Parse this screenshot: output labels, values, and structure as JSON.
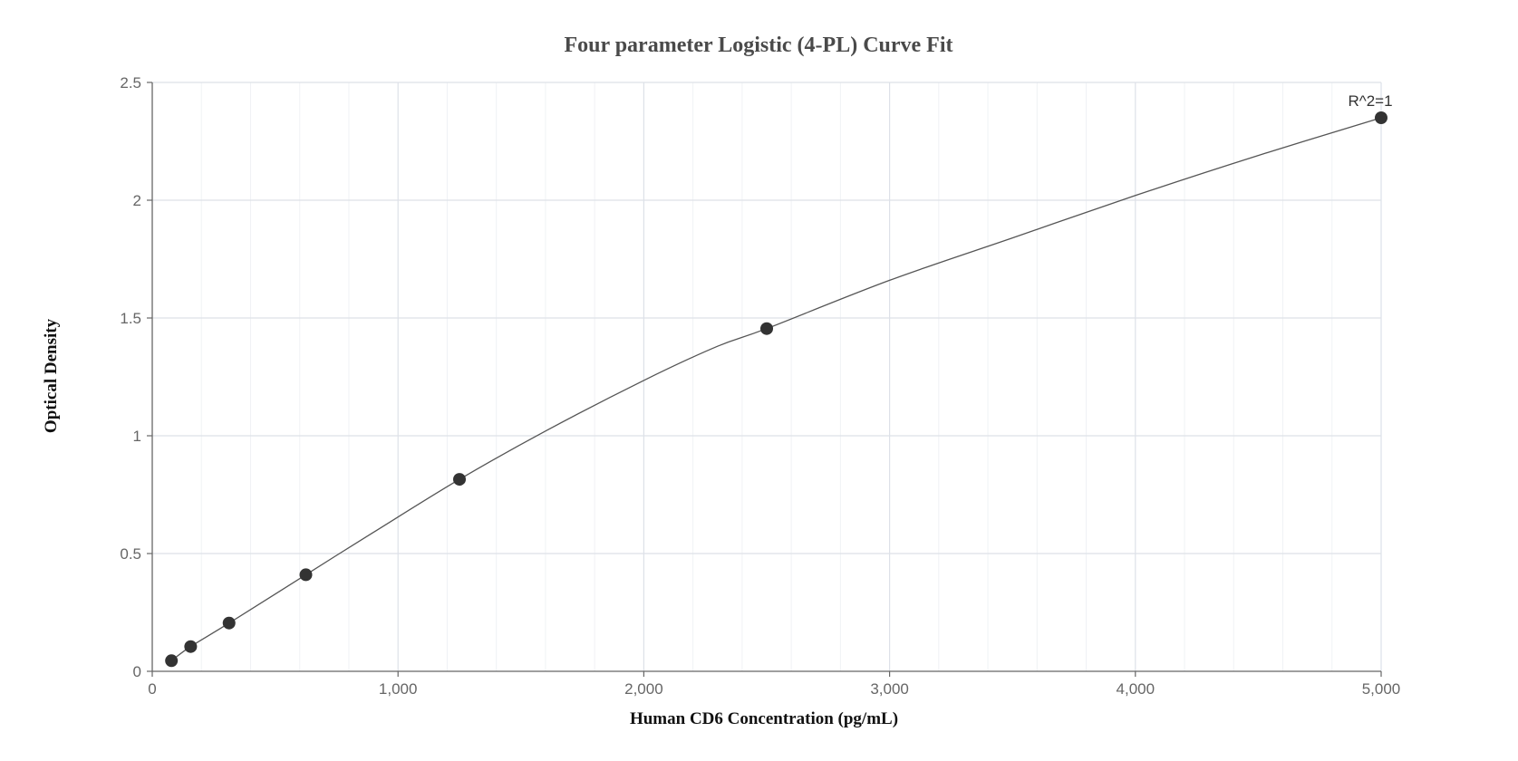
{
  "chart_data": {
    "type": "scatter",
    "title": "Four parameter Logistic (4-PL) Curve Fit",
    "xlabel": "Human CD6 Concentration (pg/mL)",
    "ylabel": "Optical Density",
    "xlim": [
      0,
      5000
    ],
    "ylim": [
      0,
      2.5
    ],
    "x_ticks": [
      0,
      1000,
      2000,
      3000,
      4000,
      5000
    ],
    "x_tick_labels": [
      "0",
      "1,000",
      "2,000",
      "3,000",
      "4,000",
      "5,000"
    ],
    "y_ticks": [
      0,
      0.5,
      1,
      1.5,
      2,
      2.5
    ],
    "y_tick_labels": [
      "0",
      "0.5",
      "1",
      "1.5",
      "2",
      "2.5"
    ],
    "grid": true,
    "series": [
      {
        "x": [
          78.125,
          156.25,
          312.5,
          625,
          1250,
          2500,
          5000
        ],
        "y": [
          0.045,
          0.105,
          0.205,
          0.41,
          0.815,
          1.455,
          2.35
        ]
      }
    ],
    "fit_curve": {
      "model": "4-PL",
      "x": [
        78,
        156,
        313,
        625,
        900,
        1250,
        1600,
        2000,
        2300,
        2500,
        3000,
        3500,
        4000,
        4500,
        5000
      ],
      "y": [
        0.045,
        0.105,
        0.205,
        0.41,
        0.59,
        0.815,
        1.02,
        1.235,
        1.38,
        1.455,
        1.66,
        1.84,
        2.02,
        2.19,
        2.35
      ]
    },
    "annotations": [
      {
        "text": "R^2=1",
        "x": 5000,
        "y": 2.35
      }
    ]
  }
}
